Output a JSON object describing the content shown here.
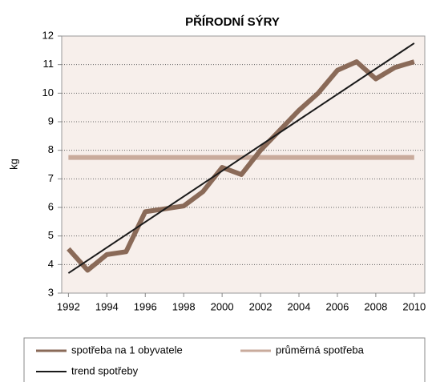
{
  "chart_data": {
    "type": "line",
    "title": "PŘÍRODNÍ SÝRY",
    "y_label": "kg",
    "xlim": [
      1991.65,
      2010.55
    ],
    "xticks": [
      1992,
      1994,
      1996,
      1998,
      2000,
      2002,
      2004,
      2006,
      2008,
      2010
    ],
    "ylim": [
      3,
      12
    ],
    "yticks": [
      3,
      4,
      5,
      6,
      7,
      8,
      9,
      10,
      11,
      12
    ],
    "grid": true,
    "series": [
      {
        "name": "spotřeba na 1 obyvatele",
        "color": "#8a6a58",
        "width": 6,
        "x": [
          1992,
          1993,
          1994,
          1995,
          1996,
          1997,
          1998,
          1999,
          2000,
          2001,
          2002,
          2003,
          2004,
          2005,
          2006,
          2007,
          2008,
          2009,
          2010
        ],
        "values": [
          4.55,
          3.8,
          4.35,
          4.45,
          5.85,
          5.95,
          6.05,
          6.55,
          7.4,
          7.15,
          8.0,
          8.7,
          9.4,
          10.0,
          10.8,
          11.1,
          10.5,
          10.9,
          11.1
        ]
      },
      {
        "name": "průměrná spotřeba",
        "color": "#c9ab9c",
        "width": 6,
        "x": [
          1992,
          2010
        ],
        "values": [
          7.75,
          7.75
        ]
      },
      {
        "name": "trend spotřeby",
        "color": "#1a1a1a",
        "width": 2,
        "x": [
          1992,
          2010
        ],
        "values": [
          3.7,
          11.75
        ]
      }
    ]
  }
}
